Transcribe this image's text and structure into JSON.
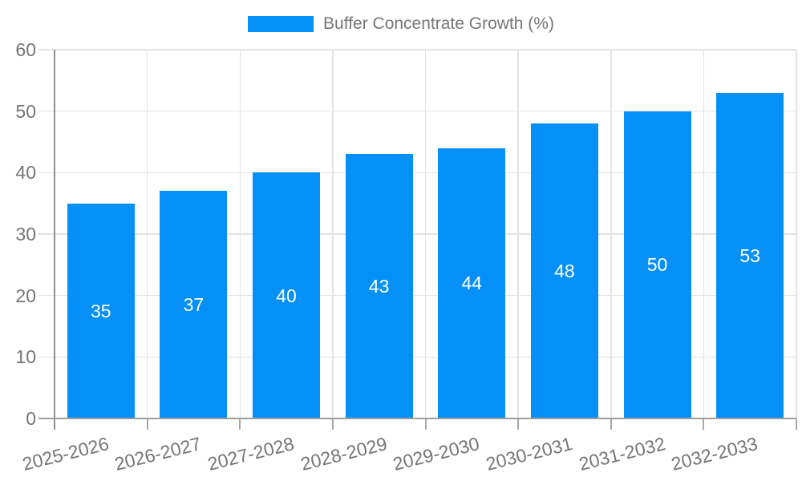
{
  "legend": {
    "label": "Buffer Concentrate Growth (%)"
  },
  "chart_data": {
    "type": "bar",
    "title": "",
    "series_name": "Buffer Concentrate Growth (%)",
    "categories": [
      "2025-2026",
      "2026-2027",
      "2027-2028",
      "2028-2029",
      "2029-2030",
      "2030-2031",
      "2031-2032",
      "2032-2033"
    ],
    "values": [
      35,
      37,
      40,
      43,
      44,
      48,
      50,
      53
    ],
    "xlabel": "",
    "ylabel": "",
    "ylim": [
      0,
      60
    ],
    "yticks": [
      0,
      10,
      20,
      30,
      40,
      50,
      60
    ],
    "grid": true,
    "legend_position": "top-center",
    "bar_labels_shown": true,
    "colors": {
      "bar": "#0590f8",
      "bar_label": "#ffffff",
      "axis_text": "#757575",
      "grid_line": "#e3e3e3",
      "axis_line": "#8f8f8f",
      "x_axis_line": "#9e9e9e",
      "tick": "#a8a8a8",
      "background": "#ffffff"
    }
  }
}
